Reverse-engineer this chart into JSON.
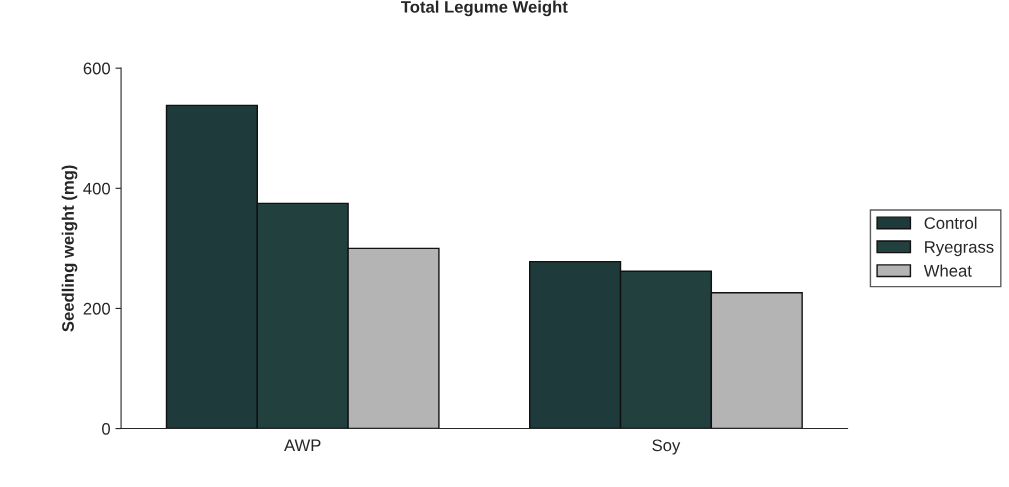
{
  "chart_data": {
    "type": "bar",
    "title": "Total Legume Weight",
    "ylabel": "Seedling weight (mg)",
    "categories": [
      "AWP",
      "Soy"
    ],
    "series": [
      {
        "name": "Control",
        "color": "#1f3a3a",
        "values": [
          538,
          278
        ]
      },
      {
        "name": "Ryegrass",
        "color": "#22403e",
        "values": [
          375,
          262
        ]
      },
      {
        "name": "Wheat",
        "color": "#b4b4b4",
        "values": [
          300,
          226
        ]
      }
    ],
    "ylim": [
      0,
      600
    ],
    "yticks": [
      0,
      200,
      400,
      600
    ],
    "grid": false,
    "legend": "right"
  }
}
